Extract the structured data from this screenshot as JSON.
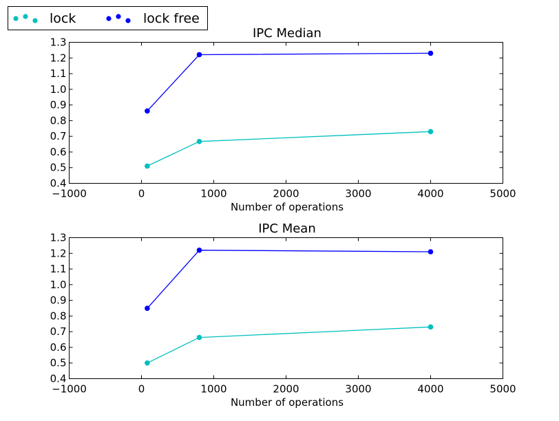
{
  "legend": {
    "placement": "top-left, outside axes",
    "entries": [
      {
        "label": "lock",
        "color": "#00BFBF"
      },
      {
        "label": "lock free",
        "color": "#0000FF"
      }
    ]
  },
  "chart_data": [
    {
      "type": "line",
      "title": "IPC Median",
      "xlabel": "Number of operations",
      "ylabel": "",
      "xlim": [
        -1000,
        5000
      ],
      "ylim": [
        0.4,
        1.3
      ],
      "x_ticks": [
        "−1000",
        "0",
        "1000",
        "2000",
        "3000",
        "4000",
        "5000"
      ],
      "y_ticks": [
        "0.4",
        "0.5",
        "0.6",
        "0.7",
        "0.8",
        "0.9",
        "1.0",
        "1.1",
        "1.2",
        "1.3"
      ],
      "grid": false,
      "x": [
        80,
        800,
        4000
      ],
      "series": [
        {
          "name": "lock",
          "color": "#00BFBF",
          "values": [
            0.51,
            0.667,
            0.73
          ]
        },
        {
          "name": "lock free",
          "color": "#0000FF",
          "values": [
            0.862,
            1.221,
            1.23
          ]
        }
      ]
    },
    {
      "type": "line",
      "title": "IPC Mean",
      "xlabel": "Number of operations",
      "ylabel": "",
      "xlim": [
        -1000,
        5000
      ],
      "ylim": [
        0.4,
        1.3
      ],
      "x_ticks": [
        "−1000",
        "0",
        "1000",
        "2000",
        "3000",
        "4000",
        "5000"
      ],
      "y_ticks": [
        "0.4",
        "0.5",
        "0.6",
        "0.7",
        "0.8",
        "0.9",
        "1.0",
        "1.1",
        "1.2",
        "1.3"
      ],
      "grid": false,
      "x": [
        80,
        800,
        4000
      ],
      "series": [
        {
          "name": "lock",
          "color": "#00BFBF",
          "values": [
            0.5,
            0.663,
            0.73
          ]
        },
        {
          "name": "lock free",
          "color": "#0000FF",
          "values": [
            0.849,
            1.22,
            1.21
          ]
        }
      ]
    }
  ]
}
